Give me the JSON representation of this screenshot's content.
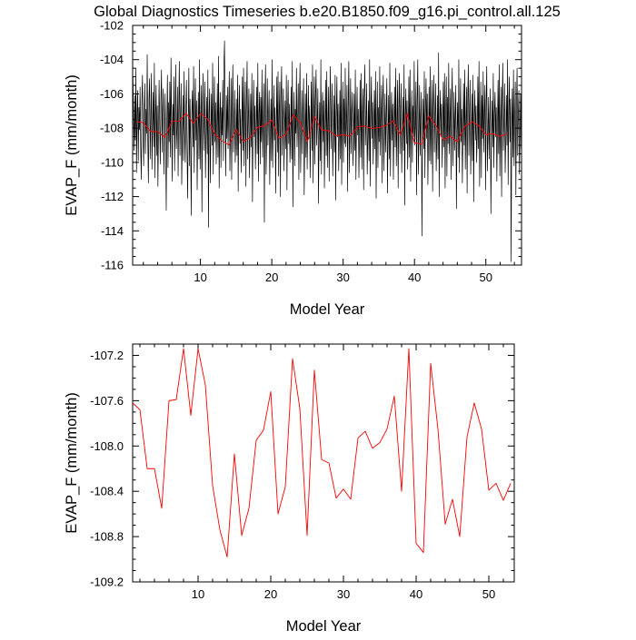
{
  "title": "Global Diagnostics Timeseries b.e20.B1850.f09_g16.pi_control.all.125",
  "colors": {
    "monthly": "#000000",
    "annual": "#ff0000",
    "axis": "#000000"
  },
  "chart_data": [
    {
      "type": "line",
      "xlabel": "Model Year",
      "ylabel": "EVAP_F (mm/month)",
      "xlim": [
        0.5,
        55.0
      ],
      "ylim": [
        -116,
        -102
      ],
      "x_ticks": [
        10,
        20,
        30,
        40,
        50
      ],
      "y_ticks": [
        -116,
        -114,
        -112,
        -110,
        -108,
        -106,
        -104,
        -102
      ],
      "series": [
        {
          "kind": "monthly",
          "x_start": 0.5417,
          "x_step": 0.0833333,
          "values": [
            -105.0,
            -107.4,
            -109.3,
            -106.1,
            -108.7,
            -104.5,
            -110.6,
            -107.2,
            -105.8,
            -109.9,
            -106.8,
            -108.1,
            -105.6,
            -109.2,
            -111.0,
            -106.4,
            -104.9,
            -108.6,
            -110.2,
            -107.0,
            -105.4,
            -109.5,
            -106.9,
            -108.3,
            -103.7,
            -108.9,
            -111.2,
            -106.2,
            -105.1,
            -109.8,
            -107.6,
            -104.8,
            -110.4,
            -108.0,
            -105.9,
            -109.1,
            -104.2,
            -110.9,
            -107.3,
            -105.5,
            -109.6,
            -106.7,
            -111.4,
            -108.2,
            -105.2,
            -107.9,
            -110.1,
            -106.3,
            -104.6,
            -109.4,
            -107.1,
            -105.7,
            -110.7,
            -108.5,
            -106.0,
            -109.0,
            -112.8,
            -107.5,
            -104.9,
            -110.3,
            -106.5,
            -108.8,
            -105.3,
            -109.7,
            -103.9,
            -107.8,
            -111.1,
            -106.6,
            -108.4,
            -105.0,
            -110.5,
            -107.4,
            -104.3,
            -109.2,
            -108.0,
            -105.6,
            -110.8,
            -106.8,
            -104.1,
            -109.6,
            -107.2,
            -105.4,
            -111.3,
            -108.6,
            -106.1,
            -109.9,
            -104.7,
            -108.2,
            -110.0,
            -106.9,
            -105.2,
            -109.4,
            -112.1,
            -107.7,
            -104.5,
            -110.2,
            -106.3,
            -108.9,
            -113.1,
            -107.0,
            -105.8,
            -109.1,
            -104.4,
            -110.6,
            -107.5,
            -105.1,
            -108.7,
            -106.4,
            -111.6,
            -108.3,
            -105.9,
            -109.8,
            -104.0,
            -110.4,
            -107.9,
            -105.5,
            -112.9,
            -106.7,
            -104.8,
            -109.3,
            -107.4,
            -105.3,
            -110.9,
            -108.1,
            -106.2,
            -109.5,
            -104.6,
            -113.8,
            -107.1,
            -105.7,
            -111.2,
            -108.5,
            -106.0,
            -109.0,
            -104.2,
            -110.7,
            -107.6,
            -105.0,
            -108.8,
            -106.5,
            -110.1,
            -108.0,
            -105.4,
            -109.7,
            -103.8,
            -111.5,
            -107.3,
            -105.9,
            -110.3,
            -106.8,
            -108.4,
            -105.2,
            -109.9,
            -104.4,
            -102.9,
            -107.8,
            -110.8,
            -106.1,
            -108.6,
            -105.6,
            -109.2,
            -107.0,
            -104.7,
            -110.5,
            -108.2,
            -105.1,
            -111.0,
            -106.6,
            -104.3,
            -109.4,
            -107.5,
            -105.8,
            -110.0,
            -108.7,
            -106.3,
            -109.6,
            -104.9,
            -111.7,
            -107.2,
            -105.5,
            -108.9,
            -106.9,
            -110.6,
            -108.1,
            -105.0,
            -109.3,
            -104.5,
            -110.2,
            -107.7,
            -105.3,
            -111.4,
            -106.4,
            -104.1,
            -109.8,
            -107.4,
            -105.7,
            -110.9,
            -108.3,
            -106.0,
            -109.1,
            -104.8,
            -112.3,
            -107.9,
            -105.2,
            -108.5,
            -106.7,
            -110.4,
            -108.0,
            -105.6,
            -109.5,
            -104.2,
            -111.1,
            -107.1,
            -105.9,
            -110.1,
            -106.2,
            -108.8,
            -104.6,
            -109.7,
            -107.6,
            -105.4,
            -113.5,
            -106.5,
            -104.3,
            -110.7,
            -108.4,
            -105.1,
            -109.0,
            -107.3,
            -105.8,
            -111.3,
            -108.6,
            -106.3,
            -109.9,
            -104.0,
            -110.3,
            -107.8,
            -105.5,
            -108.7,
            -106.8,
            -111.8,
            -108.2,
            -105.0,
            -109.4,
            -104.7,
            -110.8,
            -107.0,
            -105.3,
            -112.0,
            -106.1,
            -104.4,
            -109.6,
            -107.5,
            -105.7,
            -110.5,
            -108.1,
            -106.4,
            -109.2,
            -104.9,
            -111.6,
            -107.2,
            -105.2,
            -108.9,
            -106.6,
            -110.0,
            -108.5,
            -105.6,
            -109.8,
            -104.1,
            -112.6,
            -107.7,
            -105.9,
            -110.2,
            -106.9,
            -108.3,
            -104.5,
            -109.1,
            -107.4,
            -105.4,
            -111.0,
            -106.3,
            -104.2,
            -110.6,
            -108.0,
            -105.8,
            -109.5,
            -107.1,
            -105.1,
            -111.9,
            -108.7,
            -106.0,
            -109.7,
            -104.8,
            -110.4,
            -107.9,
            -105.5,
            -108.6,
            -106.7,
            -110.9,
            -108.2,
            -105.3,
            -109.3,
            -104.3,
            -111.2,
            -107.3,
            -105.0,
            -110.1,
            -106.2,
            -104.6,
            -109.0,
            -107.6,
            -105.7,
            -112.4,
            -108.4,
            -106.5,
            -109.9,
            -104.0,
            -110.7,
            -107.0,
            -105.9,
            -108.8,
            -106.4,
            -111.5,
            -108.1,
            -105.2,
            -109.6,
            -104.7,
            -110.3,
            -107.8,
            -105.6,
            -111.1,
            -106.8,
            -104.4,
            -109.2,
            -107.5,
            -105.4,
            -110.8,
            -108.6,
            -106.1,
            -109.4,
            -104.9,
            -112.2,
            -107.2,
            -105.0,
            -108.5,
            -106.6,
            -110.5,
            -108.3,
            -105.8,
            -109.8,
            -104.2,
            -111.3,
            -107.4,
            -105.3,
            -110.0,
            -106.3,
            -108.9,
            -104.5,
            -109.1,
            -107.7,
            -105.5,
            -111.7,
            -106.7,
            -104.1,
            -110.6,
            -108.0,
            -105.1,
            -109.5,
            -107.1,
            -105.9,
            -110.2,
            -108.7,
            -106.0,
            -109.3,
            -104.6,
            -111.0,
            -107.9,
            -105.6,
            -108.4,
            -106.9,
            -110.9,
            -108.2,
            -105.2,
            -109.7,
            -104.8,
            -110.4,
            -107.3,
            -105.7,
            -111.6,
            -106.2,
            -104.3,
            -109.0,
            -107.6,
            -105.4,
            -110.7,
            -108.5,
            -106.4,
            -109.9,
            -104.0,
            -111.4,
            -107.0,
            -105.0,
            -108.6,
            -106.5,
            -110.1,
            -108.1,
            -105.8,
            -109.2,
            -104.7,
            -112.1,
            -107.8,
            -105.3,
            -110.3,
            -106.8,
            -108.8,
            -104.4,
            -109.6,
            -107.4,
            -105.5,
            -111.2,
            -106.3,
            -104.9,
            -110.5,
            -108.3,
            -106.0,
            -109.4,
            -107.2,
            -105.1,
            -111.8,
            -108.6,
            -106.1,
            -109.8,
            -104.2,
            -110.8,
            -107.5,
            -105.9,
            -108.7,
            -106.6,
            -111.0,
            -108.0,
            -105.6,
            -109.1,
            -104.5,
            -110.2,
            -107.7,
            -105.2,
            -111.5,
            -106.9,
            -104.8,
            -109.5,
            -107.1,
            -105.4,
            -110.6,
            -108.4,
            -106.2,
            -109.3,
            -104.3,
            -112.5,
            -107.3,
            -105.7,
            -108.9,
            -106.4,
            -110.4,
            -108.2,
            -105.0,
            -109.7,
            -104.6,
            -111.1,
            -107.6,
            -105.8,
            -110.0,
            -106.7,
            -108.5,
            -104.1,
            -109.0,
            -107.9,
            -105.3,
            -111.9,
            -106.5,
            -104.0,
            -110.7,
            -108.1,
            -105.5,
            -109.6,
            -107.4,
            -105.9,
            -114.3,
            -108.8,
            -106.3,
            -109.2,
            -104.7,
            -110.9,
            -107.0,
            -105.1,
            -108.6,
            -106.0,
            -111.3,
            -108.3,
            -105.6,
            -109.9,
            -104.4,
            -110.1,
            -107.8,
            -105.2,
            -111.7,
            -106.8,
            -104.9,
            -109.4,
            -107.2,
            -105.4,
            -110.5,
            -108.7,
            -106.1,
            -109.8,
            -103.6,
            -112.0,
            -107.5,
            -105.8,
            -108.4,
            -106.6,
            -110.3,
            -108.0,
            -105.3,
            -109.1,
            -104.8,
            -111.5,
            -107.1,
            -105.0,
            -110.8,
            -106.2,
            -108.9,
            -104.2,
            -109.5,
            -107.7,
            -105.7,
            -111.0,
            -106.4,
            -104.5,
            -110.2,
            -108.6,
            -105.9,
            -109.3,
            -107.3,
            -105.5,
            -112.7,
            -108.2,
            -106.5,
            -109.7,
            -104.0,
            -110.6,
            -107.9,
            -105.1,
            -108.8,
            -106.9,
            -111.2,
            -108.5,
            -105.4,
            -109.0,
            -104.6,
            -110.4,
            -107.6,
            -105.6,
            -111.8,
            -106.3,
            -104.3,
            -109.6,
            -107.0,
            -105.2,
            -110.7,
            -108.1,
            -106.0,
            -109.9,
            -104.9,
            -112.3,
            -107.4,
            -105.8,
            -108.7,
            -106.7,
            -110.0,
            -108.4,
            -105.0,
            -109.2,
            -104.1,
            -111.4,
            -107.8,
            -105.3,
            -110.9,
            -106.1,
            -108.6,
            -104.7,
            -109.4,
            -107.2,
            -105.5,
            -111.6,
            -106.5,
            -104.4,
            -110.5,
            -108.3,
            -106.2,
            -109.8,
            -107.5,
            -105.7,
            -113.0,
            -108.9,
            -106.4,
            -109.1,
            -104.8,
            -110.3,
            -107.1,
            -105.9,
            -108.5,
            -106.8,
            -111.1,
            -108.0,
            -105.2,
            -109.5,
            -104.3,
            -110.8,
            -107.7,
            -105.6,
            -112.0,
            -106.6,
            -104.2,
            -109.3,
            -107.4,
            -105.4,
            -110.6,
            -108.7,
            -106.1,
            -109.0,
            -104.0,
            -111.3,
            -107.0,
            -105.0,
            -108.8,
            -106.3,
            -115.8,
            -108.2,
            -105.7,
            -109.7,
            -104.6,
            -110.2,
            -107.6,
            -105.3,
            -111.9,
            -106.9,
            -104.5,
            -109.6,
            -107.3,
            -105.8,
            -110.7,
            -108.4,
            -106.0,
            -109.2
          ]
        },
        {
          "kind": "annual",
          "x_start": 1,
          "x_step": 1,
          "values": [
            -107.62,
            -107.68,
            -108.2,
            -108.2,
            -108.55,
            -107.6,
            -107.59,
            -107.14,
            -107.73,
            -107.14,
            -107.46,
            -108.35,
            -108.74,
            -108.98,
            -108.07,
            -108.79,
            -108.55,
            -107.95,
            -107.86,
            -107.52,
            -108.6,
            -108.36,
            -107.23,
            -107.67,
            -108.79,
            -107.33,
            -108.12,
            -108.15,
            -108.46,
            -108.38,
            -108.47,
            -107.93,
            -107.87,
            -108.02,
            -107.97,
            -107.85,
            -107.56,
            -108.4,
            -107.14,
            -108.86,
            -108.94,
            -107.27,
            -107.85,
            -108.69,
            -108.47,
            -108.8,
            -107.92,
            -107.62,
            -107.85,
            -108.39,
            -108.33,
            -108.48,
            -108.33
          ]
        }
      ]
    },
    {
      "type": "line",
      "xlabel": "Model Year",
      "ylabel": "EVAP_F (mm/month)",
      "xlim": [
        1,
        53.5
      ],
      "ylim": [
        -109.2,
        -107.1
      ],
      "x_ticks": [
        10,
        20,
        30,
        40,
        50
      ],
      "y_ticks": [
        -109.2,
        -108.8,
        -108.4,
        -108.0,
        -107.6,
        -107.2
      ],
      "y_tick_labels": [
        "-109.2",
        "-108.8",
        "-108.4",
        "-108.0",
        "-107.6",
        "-107.2"
      ],
      "series": [
        {
          "kind": "annual",
          "x_start": 1,
          "x_step": 1,
          "values": [
            -107.62,
            -107.68,
            -108.2,
            -108.2,
            -108.55,
            -107.6,
            -107.59,
            -107.14,
            -107.73,
            -107.14,
            -107.46,
            -108.35,
            -108.74,
            -108.98,
            -108.07,
            -108.79,
            -108.55,
            -107.95,
            -107.86,
            -107.52,
            -108.6,
            -108.36,
            -107.23,
            -107.67,
            -108.79,
            -107.33,
            -108.12,
            -108.15,
            -108.46,
            -108.38,
            -108.47,
            -107.93,
            -107.87,
            -108.02,
            -107.97,
            -107.85,
            -107.56,
            -108.4,
            -107.14,
            -108.86,
            -108.94,
            -107.27,
            -107.85,
            -108.69,
            -108.47,
            -108.8,
            -107.92,
            -107.62,
            -107.85,
            -108.39,
            -108.33,
            -108.48,
            -108.33
          ]
        }
      ]
    }
  ]
}
